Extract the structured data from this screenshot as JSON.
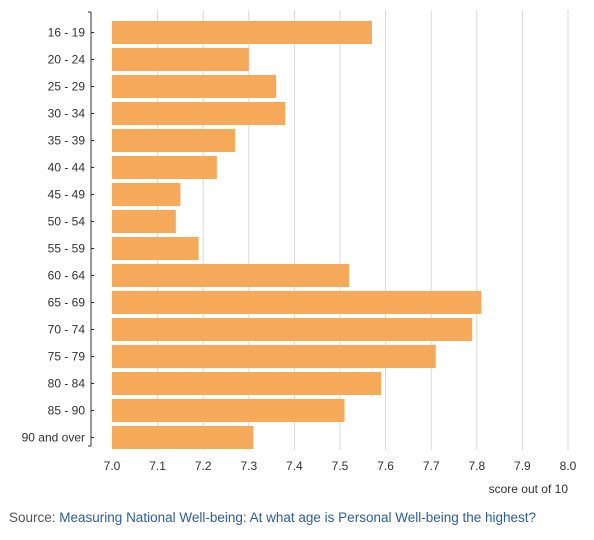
{
  "chart_data": {
    "type": "bar",
    "orientation": "horizontal",
    "categories": [
      "16 - 19",
      "20 - 24",
      "25 - 29",
      "30 - 34",
      "35 - 39",
      "40 - 44",
      "45 - 49",
      "50 - 54",
      "55 - 59",
      "60 - 64",
      "65 - 69",
      "70 - 74",
      "75 - 79",
      "80 - 84",
      "85 - 90",
      "90 and over"
    ],
    "values": [
      7.57,
      7.3,
      7.36,
      7.38,
      7.27,
      7.23,
      7.15,
      7.14,
      7.19,
      7.52,
      7.81,
      7.79,
      7.71,
      7.59,
      7.51,
      7.31
    ],
    "xlim": [
      7.0,
      8.0
    ],
    "xticks": [
      "7.0",
      "7.1",
      "7.2",
      "7.3",
      "7.4",
      "7.5",
      "7.6",
      "7.7",
      "7.8",
      "7.9",
      "8.0"
    ],
    "xlabel": "score out of 10",
    "ylabel": "",
    "title": "",
    "grid": "vertical",
    "legend": "none",
    "bar_color": "#f7a95a",
    "grid_color": "#d9d9d9"
  },
  "source": {
    "prefix": "Source: ",
    "link_text": "Measuring National Well-being: At what age is Personal Well-being the highest?",
    "link_color": "#2a5ea8"
  }
}
